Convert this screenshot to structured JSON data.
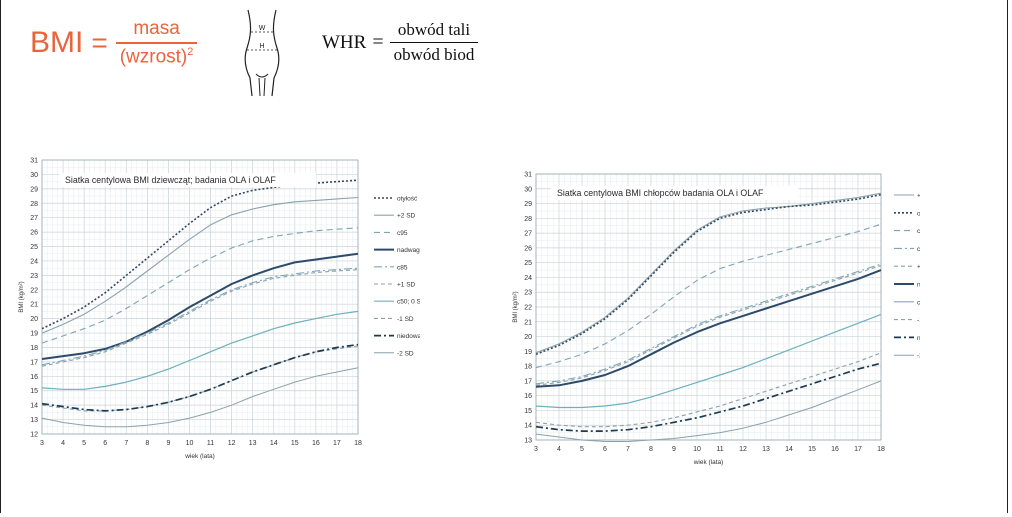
{
  "formulas": {
    "bmi": {
      "lhs": "BMI",
      "eq": "=",
      "numerator": "masa",
      "denominator": "(wzrost)",
      "exponent": "2",
      "color": "#e8643c"
    },
    "whr": {
      "lhs": "WHR",
      "eq": "=",
      "numerator": "obwód tali",
      "denominator": "obwód biod"
    },
    "torso_labels": {
      "waist": "W",
      "hip": "H"
    }
  },
  "chart_data": [
    {
      "type": "line",
      "title": "Siatka centylowa BMI dziewcząt; badania OLA i OLAF",
      "xlabel": "wiek (lata)",
      "ylabel": "BMI (kg/m²)",
      "x": [
        3,
        4,
        5,
        6,
        7,
        8,
        9,
        10,
        11,
        12,
        13,
        14,
        15,
        16,
        17,
        18
      ],
      "xlim": [
        3,
        18
      ],
      "ylim": [
        12,
        31
      ],
      "grid": true,
      "legend_position": "right",
      "series": [
        {
          "name": "otyłość",
          "color": "#34495e",
          "dash": "2,2",
          "width": 1.6,
          "values": [
            19.3,
            20.0,
            20.8,
            21.8,
            23.0,
            24.2,
            25.4,
            26.6,
            27.7,
            28.5,
            28.9,
            29.1,
            29.3,
            29.4,
            29.5,
            29.6
          ]
        },
        {
          "name": "+2 SD",
          "color": "#8aa2ad",
          "dash": "",
          "width": 1.1,
          "values": [
            19.0,
            19.6,
            20.3,
            21.2,
            22.2,
            23.3,
            24.4,
            25.5,
            26.5,
            27.2,
            27.6,
            27.9,
            28.1,
            28.2,
            28.3,
            28.4
          ]
        },
        {
          "name": "c95",
          "color": "#7fa5b3",
          "dash": "6,4",
          "width": 1.1,
          "values": [
            18.3,
            18.8,
            19.3,
            19.9,
            20.7,
            21.6,
            22.5,
            23.4,
            24.2,
            24.9,
            25.4,
            25.7,
            25.9,
            26.1,
            26.2,
            26.3
          ]
        },
        {
          "name": "nadwaga",
          "color": "#2c4a6a",
          "dash": "",
          "width": 2.0,
          "values": [
            17.2,
            17.4,
            17.6,
            17.9,
            18.4,
            19.1,
            19.9,
            20.8,
            21.6,
            22.4,
            23.0,
            23.5,
            23.9,
            24.1,
            24.3,
            24.5
          ]
        },
        {
          "name": "c85",
          "color": "#7fa5b3",
          "dash": "8,3,2,3",
          "width": 1.1,
          "values": [
            16.8,
            17.1,
            17.4,
            17.8,
            18.4,
            19.0,
            19.7,
            20.5,
            21.3,
            22.0,
            22.5,
            22.9,
            23.1,
            23.3,
            23.4,
            23.5
          ]
        },
        {
          "name": "+1 SD",
          "color": "#8aa2ad",
          "dash": "4,3",
          "width": 1.1,
          "values": [
            16.7,
            17.0,
            17.3,
            17.7,
            18.3,
            18.9,
            19.6,
            20.4,
            21.2,
            21.9,
            22.4,
            22.8,
            23.0,
            23.2,
            23.3,
            23.4
          ]
        },
        {
          "name": "c50; 0 SD",
          "color": "#6cb0be",
          "dash": "",
          "width": 1.2,
          "values": [
            15.2,
            15.1,
            15.1,
            15.3,
            15.6,
            16.0,
            16.5,
            17.1,
            17.7,
            18.3,
            18.8,
            19.3,
            19.7,
            20.0,
            20.3,
            20.5
          ]
        },
        {
          "name": "-1 SD",
          "color": "#8aa2ad",
          "dash": "4,3",
          "width": 1.1,
          "values": [
            14.0,
            13.8,
            13.6,
            13.6,
            13.7,
            13.9,
            14.2,
            14.6,
            15.1,
            15.7,
            16.3,
            16.8,
            17.3,
            17.7,
            17.9,
            18.1
          ]
        },
        {
          "name": "niedowaga",
          "color": "#1e3a52",
          "dash": "7,3,2,3",
          "width": 1.7,
          "values": [
            14.1,
            13.9,
            13.7,
            13.6,
            13.7,
            13.9,
            14.2,
            14.6,
            15.1,
            15.7,
            16.3,
            16.8,
            17.3,
            17.7,
            18.0,
            18.2
          ]
        },
        {
          "name": "-2 SD",
          "color": "#8aa2ad",
          "dash": "",
          "width": 1.0,
          "values": [
            13.1,
            12.8,
            12.6,
            12.5,
            12.5,
            12.6,
            12.8,
            13.1,
            13.5,
            14.0,
            14.6,
            15.1,
            15.6,
            16.0,
            16.3,
            16.6
          ]
        }
      ]
    },
    {
      "type": "line",
      "title": "Siatka centylowa BMI chłopców badania OLA i OLAF",
      "xlabel": "wiek (lata)",
      "ylabel": "BMI (kg/m²)",
      "x": [
        3,
        4,
        5,
        6,
        7,
        8,
        9,
        10,
        11,
        12,
        13,
        14,
        15,
        16,
        17,
        18
      ],
      "xlim": [
        3,
        18
      ],
      "ylim": [
        13,
        31
      ],
      "grid": true,
      "legend_position": "right",
      "series": [
        {
          "name": "+2 SD",
          "color": "#8aa2ad",
          "dash": "",
          "width": 1.1,
          "values": [
            18.9,
            19.5,
            20.3,
            21.3,
            22.6,
            24.2,
            25.8,
            27.2,
            28.1,
            28.5,
            28.7,
            28.8,
            29.0,
            29.2,
            29.4,
            29.7
          ]
        },
        {
          "name": "otyłość",
          "color": "#34495e",
          "dash": "2,2",
          "width": 1.6,
          "values": [
            18.8,
            19.4,
            20.2,
            21.2,
            22.5,
            24.1,
            25.7,
            27.1,
            28.0,
            28.4,
            28.6,
            28.8,
            28.9,
            29.1,
            29.3,
            29.6
          ]
        },
        {
          "name": "c95",
          "color": "#7fa5b3",
          "dash": "6,4",
          "width": 1.1,
          "values": [
            17.9,
            18.3,
            18.8,
            19.5,
            20.4,
            21.5,
            22.7,
            23.8,
            24.6,
            25.1,
            25.5,
            25.9,
            26.3,
            26.7,
            27.1,
            27.6
          ]
        },
        {
          "name": "c85",
          "color": "#7fa5b3",
          "dash": "8,3,2,3",
          "width": 1.1,
          "values": [
            16.8,
            17.0,
            17.3,
            17.8,
            18.4,
            19.2,
            20.0,
            20.8,
            21.4,
            21.9,
            22.4,
            22.9,
            23.4,
            23.9,
            24.4,
            24.9
          ]
        },
        {
          "name": "+1 SD",
          "color": "#8aa2ad",
          "dash": "4,3",
          "width": 1.1,
          "values": [
            16.7,
            16.9,
            17.2,
            17.7,
            18.3,
            19.1,
            19.9,
            20.7,
            21.3,
            21.8,
            22.3,
            22.8,
            23.3,
            23.8,
            24.3,
            24.8
          ]
        },
        {
          "name": "nadwaga",
          "color": "#2c4a6a",
          "dash": "",
          "width": 2.0,
          "values": [
            16.6,
            16.7,
            17.0,
            17.4,
            18.0,
            18.8,
            19.6,
            20.3,
            20.9,
            21.4,
            21.9,
            22.4,
            22.9,
            23.4,
            23.9,
            24.5
          ]
        },
        {
          "name": "c50; 0 SD",
          "color": "#6cb0be",
          "dash": "",
          "width": 1.2,
          "values": [
            15.3,
            15.2,
            15.2,
            15.3,
            15.5,
            15.9,
            16.4,
            16.9,
            17.4,
            17.9,
            18.5,
            19.1,
            19.7,
            20.3,
            20.9,
            21.5
          ]
        },
        {
          "name": "-1 SD",
          "color": "#8aa2ad",
          "dash": "4,3",
          "width": 1.1,
          "values": [
            14.2,
            14.0,
            13.9,
            13.9,
            14.0,
            14.2,
            14.5,
            14.9,
            15.3,
            15.8,
            16.3,
            16.8,
            17.3,
            17.8,
            18.3,
            18.9
          ]
        },
        {
          "name": "niedowaga",
          "color": "#1e3a52",
          "dash": "7,3,2,3",
          "width": 1.7,
          "values": [
            13.9,
            13.7,
            13.6,
            13.6,
            13.7,
            13.9,
            14.2,
            14.5,
            14.9,
            15.3,
            15.8,
            16.3,
            16.8,
            17.3,
            17.8,
            18.2
          ]
        },
        {
          "name": "-2 SD",
          "color": "#8aa2ad",
          "dash": "",
          "width": 1.0,
          "values": [
            13.4,
            13.2,
            13.0,
            12.9,
            12.9,
            13.0,
            13.1,
            13.3,
            13.5,
            13.8,
            14.2,
            14.7,
            15.2,
            15.8,
            16.4,
            17.0
          ]
        }
      ]
    }
  ]
}
